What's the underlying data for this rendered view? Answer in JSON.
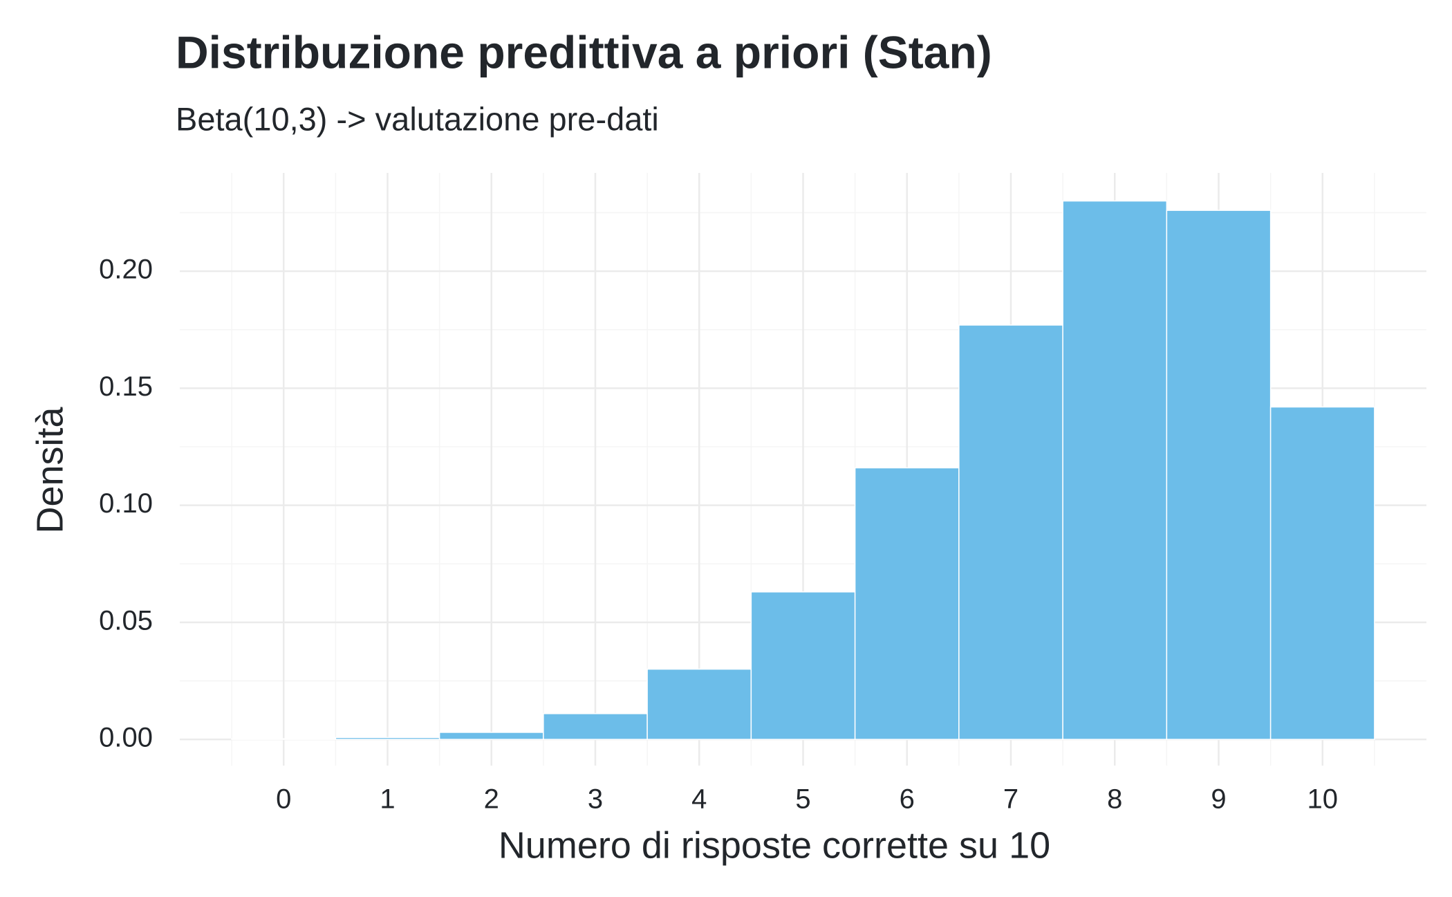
{
  "chart_data": {
    "type": "histogram",
    "title": "Distribuzione predittiva a priori (Stan)",
    "subtitle": "Beta(10,3) -> valutazione pre-dati",
    "x_label": "Numero di risposte corrette su 10",
    "y_label": "Densità",
    "bins": [
      -0.5,
      0.5,
      1.5,
      2.5,
      3.5,
      4.5,
      5.5,
      6.5,
      7.5,
      8.5,
      9.5,
      10.5
    ],
    "counts": [
      0.0003,
      0.0008,
      0.003,
      0.011,
      0.03,
      0.063,
      0.116,
      0.177,
      0.23,
      0.226,
      0.142
    ],
    "color": "#6cbde9",
    "xlim": [
      -1,
      11
    ],
    "xticks": [
      0,
      1,
      2,
      3,
      4,
      5,
      6,
      7,
      8,
      9,
      10
    ],
    "ylim": [
      -0.0112,
      0.242
    ],
    "yticks": [
      {
        "value": 0,
        "label": "0.00"
      },
      0.05,
      {
        "value": 0.1,
        "label": "0.10"
      },
      0.15,
      {
        "value": 0.2,
        "label": "0.20"
      }
    ],
    "grid": true
  }
}
